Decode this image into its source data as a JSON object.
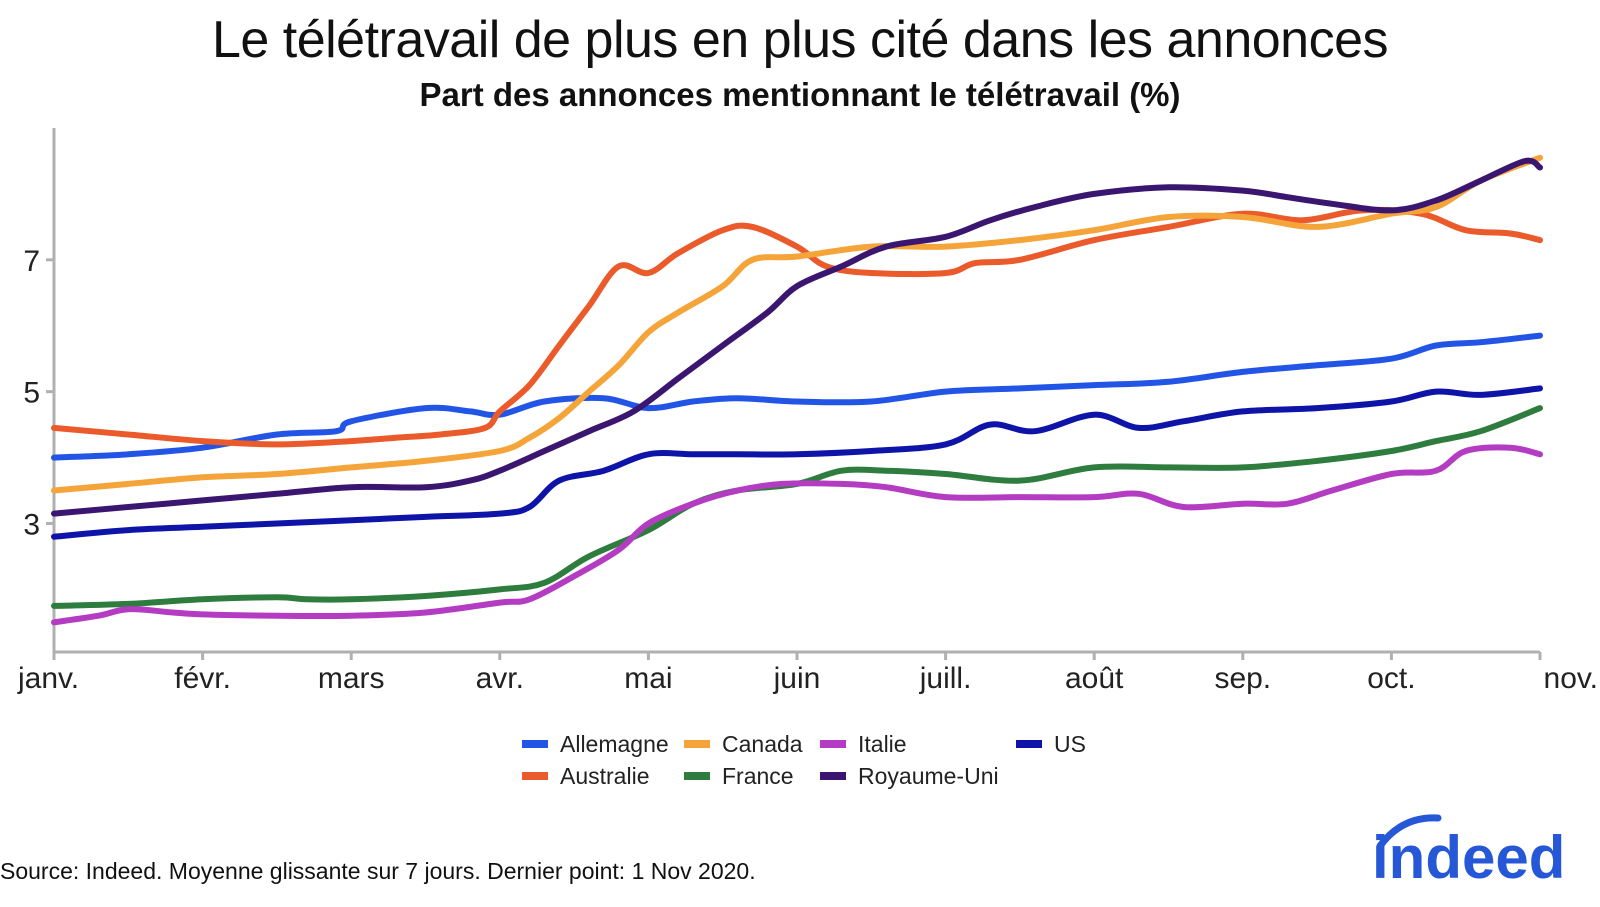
{
  "title": "Le télétravail de plus en plus cité dans les annonces",
  "subtitle": "Part des annonces mentionnant le télétravail (%)",
  "source": "Source: Indeed. Moyenne glissante sur 7 jours. Dernier point: 1 Nov 2020.",
  "logo": {
    "text": "indeed",
    "color": "#2557d6"
  },
  "chart_data": {
    "type": "line",
    "title": "Le télétravail de plus en plus cité dans les annonces",
    "subtitle": "Part des annonces mentionnant le télétravail (%)",
    "xlabel": "",
    "ylabel": "",
    "x_ticks": [
      "janv.",
      "févr.",
      "mars",
      "avr.",
      "mai",
      "juin",
      "juill.",
      "août",
      "sep.",
      "oct.",
      "nov."
    ],
    "y_ticks": [
      3,
      5,
      7
    ],
    "xlim": [
      0,
      10
    ],
    "ylim": [
      1.05,
      9.0
    ],
    "grid": false,
    "legend_position": "bottom",
    "series": [
      {
        "name": "Allemagne",
        "color": "#2255e6",
        "points": [
          [
            0,
            4.0
          ],
          [
            0.5,
            4.05
          ],
          [
            1,
            4.15
          ],
          [
            1.5,
            4.35
          ],
          [
            1.9,
            4.4
          ],
          [
            2,
            4.55
          ],
          [
            2.5,
            4.75
          ],
          [
            2.8,
            4.7
          ],
          [
            3,
            4.65
          ],
          [
            3.3,
            4.85
          ],
          [
            3.7,
            4.9
          ],
          [
            4,
            4.75
          ],
          [
            4.3,
            4.85
          ],
          [
            4.6,
            4.9
          ],
          [
            5,
            4.85
          ],
          [
            5.5,
            4.85
          ],
          [
            6,
            5.0
          ],
          [
            6.5,
            5.05
          ],
          [
            7,
            5.1
          ],
          [
            7.5,
            5.15
          ],
          [
            8,
            5.3
          ],
          [
            8.5,
            5.4
          ],
          [
            9,
            5.5
          ],
          [
            9.3,
            5.7
          ],
          [
            9.6,
            5.75
          ],
          [
            10,
            5.85
          ]
        ]
      },
      {
        "name": "Australie",
        "color": "#ea5a2a",
        "points": [
          [
            0,
            4.45
          ],
          [
            0.5,
            4.35
          ],
          [
            1,
            4.25
          ],
          [
            1.5,
            4.2
          ],
          [
            2,
            4.25
          ],
          [
            2.3,
            4.3
          ],
          [
            2.6,
            4.35
          ],
          [
            2.9,
            4.45
          ],
          [
            3,
            4.7
          ],
          [
            3.2,
            5.1
          ],
          [
            3.4,
            5.7
          ],
          [
            3.6,
            6.3
          ],
          [
            3.8,
            6.9
          ],
          [
            4,
            6.8
          ],
          [
            4.2,
            7.1
          ],
          [
            4.5,
            7.45
          ],
          [
            4.7,
            7.5
          ],
          [
            5,
            7.2
          ],
          [
            5.2,
            6.9
          ],
          [
            5.5,
            6.8
          ],
          [
            6,
            6.8
          ],
          [
            6.2,
            6.95
          ],
          [
            6.5,
            7.0
          ],
          [
            7,
            7.3
          ],
          [
            7.5,
            7.5
          ],
          [
            8,
            7.7
          ],
          [
            8.4,
            7.6
          ],
          [
            8.8,
            7.75
          ],
          [
            9.2,
            7.7
          ],
          [
            9.5,
            7.45
          ],
          [
            9.8,
            7.4
          ],
          [
            10,
            7.3
          ]
        ]
      },
      {
        "name": "Canada",
        "color": "#f5a43a",
        "points": [
          [
            0,
            3.5
          ],
          [
            0.5,
            3.6
          ],
          [
            1,
            3.7
          ],
          [
            1.5,
            3.75
          ],
          [
            2,
            3.85
          ],
          [
            2.5,
            3.95
          ],
          [
            3,
            4.1
          ],
          [
            3.2,
            4.3
          ],
          [
            3.4,
            4.6
          ],
          [
            3.6,
            5.0
          ],
          [
            3.8,
            5.4
          ],
          [
            4,
            5.9
          ],
          [
            4.2,
            6.2
          ],
          [
            4.5,
            6.6
          ],
          [
            4.7,
            7.0
          ],
          [
            5,
            7.05
          ],
          [
            5.5,
            7.2
          ],
          [
            6,
            7.2
          ],
          [
            6.5,
            7.3
          ],
          [
            7,
            7.45
          ],
          [
            7.5,
            7.65
          ],
          [
            8,
            7.65
          ],
          [
            8.5,
            7.5
          ],
          [
            9,
            7.7
          ],
          [
            9.3,
            7.8
          ],
          [
            9.6,
            8.2
          ],
          [
            10,
            8.55
          ]
        ]
      },
      {
        "name": "France",
        "color": "#2e7d3e",
        "points": [
          [
            0,
            1.75
          ],
          [
            0.5,
            1.78
          ],
          [
            1,
            1.85
          ],
          [
            1.5,
            1.88
          ],
          [
            1.7,
            1.85
          ],
          [
            2,
            1.85
          ],
          [
            2.5,
            1.9
          ],
          [
            3,
            2.0
          ],
          [
            3.3,
            2.1
          ],
          [
            3.6,
            2.5
          ],
          [
            4,
            2.9
          ],
          [
            4.3,
            3.3
          ],
          [
            4.6,
            3.5
          ],
          [
            5,
            3.6
          ],
          [
            5.3,
            3.8
          ],
          [
            5.6,
            3.8
          ],
          [
            6,
            3.75
          ],
          [
            6.5,
            3.65
          ],
          [
            7,
            3.85
          ],
          [
            7.5,
            3.85
          ],
          [
            8,
            3.85
          ],
          [
            8.5,
            3.95
          ],
          [
            9,
            4.1
          ],
          [
            9.3,
            4.25
          ],
          [
            9.6,
            4.4
          ],
          [
            10,
            4.75
          ]
        ]
      },
      {
        "name": "Italie",
        "color": "#b43cc2",
        "points": [
          [
            0,
            1.5
          ],
          [
            0.3,
            1.6
          ],
          [
            0.5,
            1.7
          ],
          [
            0.8,
            1.65
          ],
          [
            1,
            1.62
          ],
          [
            1.5,
            1.6
          ],
          [
            2,
            1.6
          ],
          [
            2.5,
            1.65
          ],
          [
            3,
            1.8
          ],
          [
            3.2,
            1.85
          ],
          [
            3.5,
            2.2
          ],
          [
            3.8,
            2.6
          ],
          [
            4,
            3.0
          ],
          [
            4.3,
            3.3
          ],
          [
            4.6,
            3.5
          ],
          [
            4.9,
            3.6
          ],
          [
            5.3,
            3.6
          ],
          [
            5.6,
            3.55
          ],
          [
            6,
            3.4
          ],
          [
            6.5,
            3.4
          ],
          [
            7,
            3.4
          ],
          [
            7.3,
            3.45
          ],
          [
            7.6,
            3.25
          ],
          [
            8,
            3.3
          ],
          [
            8.3,
            3.3
          ],
          [
            8.6,
            3.5
          ],
          [
            9,
            3.75
          ],
          [
            9.3,
            3.8
          ],
          [
            9.5,
            4.1
          ],
          [
            9.8,
            4.15
          ],
          [
            10,
            4.05
          ]
        ]
      },
      {
        "name": "Royaume-Uni",
        "color": "#3b1670",
        "points": [
          [
            0,
            3.15
          ],
          [
            0.5,
            3.25
          ],
          [
            1,
            3.35
          ],
          [
            1.5,
            3.45
          ],
          [
            2,
            3.55
          ],
          [
            2.5,
            3.55
          ],
          [
            2.8,
            3.65
          ],
          [
            3,
            3.8
          ],
          [
            3.3,
            4.1
          ],
          [
            3.6,
            4.4
          ],
          [
            3.9,
            4.7
          ],
          [
            4.2,
            5.2
          ],
          [
            4.5,
            5.7
          ],
          [
            4.8,
            6.2
          ],
          [
            5,
            6.6
          ],
          [
            5.3,
            6.9
          ],
          [
            5.6,
            7.2
          ],
          [
            6,
            7.35
          ],
          [
            6.3,
            7.6
          ],
          [
            6.6,
            7.8
          ],
          [
            7,
            8.0
          ],
          [
            7.5,
            8.1
          ],
          [
            8,
            8.05
          ],
          [
            8.3,
            7.95
          ],
          [
            8.6,
            7.85
          ],
          [
            9,
            7.75
          ],
          [
            9.3,
            7.9
          ],
          [
            9.6,
            8.2
          ],
          [
            9.9,
            8.5
          ],
          [
            10,
            8.4
          ]
        ]
      },
      {
        "name": "US",
        "color": "#0f14a8",
        "points": [
          [
            0,
            2.8
          ],
          [
            0.5,
            2.9
          ],
          [
            1,
            2.95
          ],
          [
            1.5,
            3.0
          ],
          [
            2,
            3.05
          ],
          [
            2.5,
            3.1
          ],
          [
            3,
            3.15
          ],
          [
            3.2,
            3.25
          ],
          [
            3.4,
            3.65
          ],
          [
            3.7,
            3.8
          ],
          [
            4,
            4.05
          ],
          [
            4.3,
            4.05
          ],
          [
            4.6,
            4.05
          ],
          [
            5,
            4.05
          ],
          [
            5.5,
            4.1
          ],
          [
            6,
            4.2
          ],
          [
            6.3,
            4.5
          ],
          [
            6.6,
            4.4
          ],
          [
            7,
            4.65
          ],
          [
            7.3,
            4.45
          ],
          [
            7.6,
            4.55
          ],
          [
            8,
            4.7
          ],
          [
            8.5,
            4.75
          ],
          [
            9,
            4.85
          ],
          [
            9.3,
            5.0
          ],
          [
            9.6,
            4.95
          ],
          [
            10,
            5.05
          ]
        ]
      }
    ],
    "legend_entries": [
      "Allemagne",
      "Canada",
      "Italie",
      "US",
      "Australie",
      "France",
      "Royaume-Uni"
    ]
  }
}
